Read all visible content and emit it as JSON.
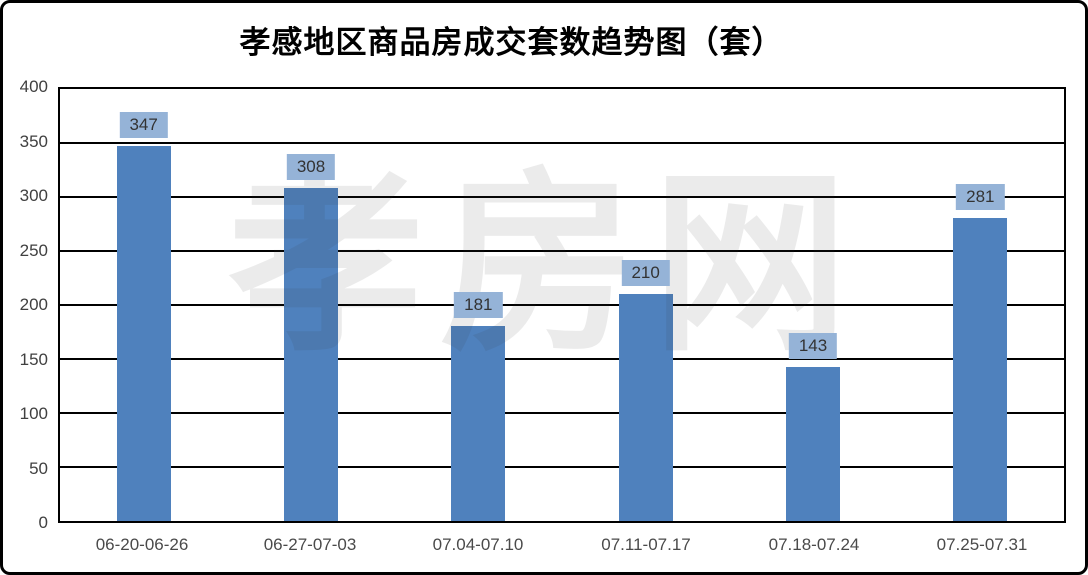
{
  "title": "孝感地区商品房成交套数趋势图（套）",
  "watermark_text": "孝房网",
  "colors": {
    "bar": "#4F81BD",
    "value_label_box": "#95B3D7",
    "gridline": "#000000",
    "axis_text": "#404040",
    "title_text": "#000000",
    "watermark": "rgba(60,60,60,0.10)"
  },
  "chart_data": {
    "type": "bar",
    "title": "孝感地区商品房成交套数趋势图（套）",
    "categories": [
      "06-20-06-26",
      "06-27-07-03",
      "07.04-07.10",
      "07.11-07.17",
      "07.18-07.24",
      "07.25-07.31"
    ],
    "values": [
      347,
      308,
      181,
      210,
      143,
      281
    ],
    "xlabel": "",
    "ylabel": "",
    "ylim": [
      0,
      400
    ],
    "ytick_step": 50,
    "yticks": [
      0,
      50,
      100,
      150,
      200,
      250,
      300,
      350,
      400
    ],
    "grid": true,
    "data_labels": true,
    "legend": "none"
  }
}
